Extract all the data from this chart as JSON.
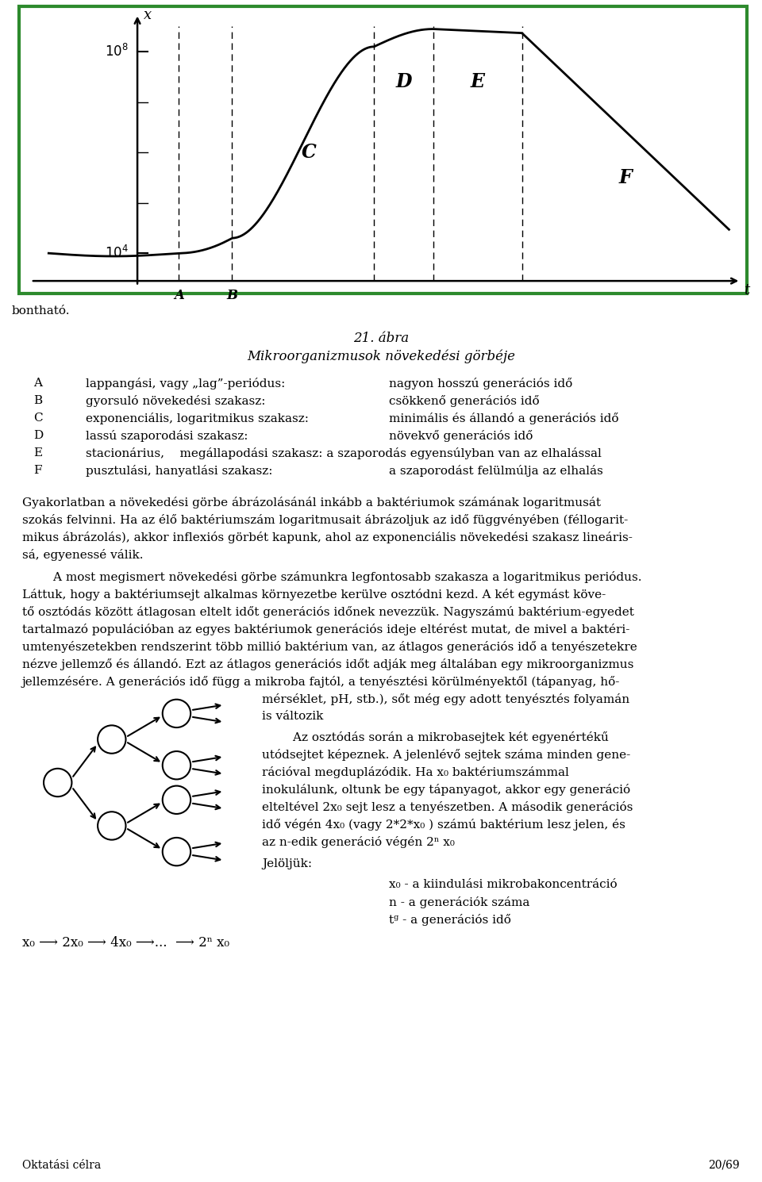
{
  "page_bg": "#ffffff",
  "border_color": "#2d8a2d",
  "fig_title1": "21. ábra",
  "fig_title2": "Mikroorganizmusok növekedési görbéje",
  "legend_data": [
    [
      "A",
      "lappangási, vagy „lag”-periódus:",
      "nagyon hosszú generációs idő"
    ],
    [
      "B",
      "gyorsuló növekedési szakasz:",
      "csökkenő generációs idő"
    ],
    [
      "C",
      "exponenciális, logaritmikus szakasz:",
      "minimális és állandó a generációs idő"
    ],
    [
      "D",
      "lassú szaporodási szakasz:",
      "növekvő generációs idő"
    ],
    [
      "E",
      "stacionárius,    megállapodási szakasz: a szaporodás egyensúlyban van az elhalással",
      ""
    ],
    [
      "F",
      "pusztulási, hanyatlási szakasz:",
      "a szaporodást felülmúlja az elhalás"
    ]
  ],
  "p1_lines": [
    "Gyakorlatban a növekedési görbe ábrázolásánál inkább a baktériumok számának logaritmusát",
    "szokás felvinni. Ha az élő baktériumszám logaritmusait ábrázoljuk az idő függvényében (féllogarit-",
    "mikus ábrázolás), akkor inflexiós görbét kapunk, ahol az exponenciális növekedési szakasz lineáris-",
    "sá, egyenessé válik."
  ],
  "p2_lines": [
    "        A most megismert növekedési görbe számunkra legfontosabb szakasza a logaritmikus periódus.",
    "Láttuk, hogy a baktériumsejt alkalmas környezetbe kerülve osztódni kezd. A két egymást köve-",
    "tő osztódás között átlagosan eltelt időt generációs időnek nevezzük. Nagyszámú baktérium-egyedet",
    "tartalmazó populációban az egyes baktériumok generációs ideje eltérést mutat, de mivel a baktéri-",
    "umtenyészetekben rendszerint több millió baktérium van, az átlagos generációs idő a tenyészetekre",
    "nézve jellemző és állandó. Ezt az átlagos generációs időt adják meg általában egy mikroorganizmus",
    "jellemzésére. A generációs idő függ a mikroba fajtól, a tenyésztési körülményektől (tápanyag, hő-"
  ],
  "p3_right_lines": [
    "mérséklet, pH, stb.), sőt még egy adott tenyésztés folyamán",
    "is változik"
  ],
  "p4_right_lines": [
    "        Az osztódás során a mikrobasejtek két egyenértékű",
    "utódsejtet képeznek. A jelenlévő sejtek száma minden gene-",
    "rációval megduplázódik. Ha x₀ baktériumszámmal",
    "inokulálunk, oltunk be egy tápanyagot, akkor egy generáció",
    "elteltével 2x₀ sejt lesz a tenyészetben. A második generációs",
    "idő végén 4x₀ (vagy 2*2*x₀ ) számú baktérium lesz jelen, és",
    "az n-edik generáció végén 2ⁿ x₀"
  ],
  "jeloljuk": "Jelöljük:",
  "jeloljuk_right_lines": [
    "x₀ - a kiindulási mikrobakoncentráció",
    "n - a generációk száma",
    "tᵍ - a generációs idő"
  ],
  "formula_parts": [
    "x₀",
    "2x₀",
    "4x₀",
    "...",
    "2ⁿ x₀"
  ],
  "bontható": "bontható.",
  "footer_left": "Oktatási célra",
  "footer_right": "20/69"
}
